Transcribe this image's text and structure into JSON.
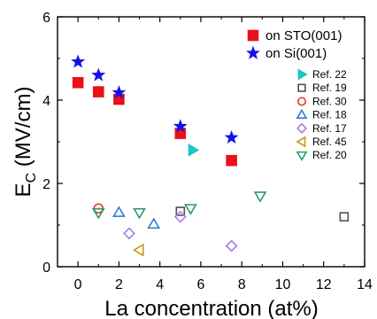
{
  "chart_data": {
    "type": "scatter",
    "title": "",
    "xlabel": "La concentration (at%)",
    "ylabel_main": "E",
    "ylabel_sub": "C",
    "ylabel_rest": " (MV/cm)",
    "xlim": [
      -1,
      14
    ],
    "ylim": [
      0,
      6
    ],
    "xticks": [
      0,
      2,
      4,
      6,
      8,
      10,
      12,
      14
    ],
    "yticks": [
      0,
      2,
      4,
      6
    ],
    "grid": false,
    "legend_position": "top-right",
    "series": [
      {
        "name": "on STO(001)",
        "marker": "square-filled",
        "color": "#e8111a",
        "points": [
          [
            0,
            4.42
          ],
          [
            1,
            4.2
          ],
          [
            2,
            4.02
          ],
          [
            5,
            3.2
          ],
          [
            7.5,
            2.55
          ]
        ]
      },
      {
        "name": "on Si(001)",
        "marker": "star-filled",
        "color": "#1511e6",
        "points": [
          [
            0,
            4.92
          ],
          [
            1,
            4.6
          ],
          [
            2,
            4.18
          ],
          [
            5,
            3.37
          ],
          [
            7.5,
            3.1
          ]
        ]
      },
      {
        "name": "Ref. 22",
        "marker": "triangle-right-filled",
        "color": "#1fc3c3",
        "points": [
          [
            5.6,
            2.8
          ]
        ]
      },
      {
        "name": "Ref. 19",
        "marker": "square-open",
        "color": "#505050",
        "points": [
          [
            5,
            1.33
          ],
          [
            13,
            1.2
          ]
        ]
      },
      {
        "name": "Ref. 30",
        "marker": "circle-open",
        "color": "#e63a32",
        "points": [
          [
            1,
            1.4
          ]
        ]
      },
      {
        "name": "Ref. 18",
        "marker": "triangle-up-open",
        "color": "#2e7bd6",
        "points": [
          [
            2,
            1.3
          ],
          [
            3.7,
            1.02
          ]
        ]
      },
      {
        "name": "Ref. 17",
        "marker": "diamond-open",
        "color": "#a77be6",
        "points": [
          [
            2.5,
            0.8
          ],
          [
            5,
            1.2
          ],
          [
            7.5,
            0.5
          ]
        ]
      },
      {
        "name": "Ref. 45",
        "marker": "triangle-left-open",
        "color": "#c49a17",
        "points": [
          [
            3,
            0.4
          ]
        ]
      },
      {
        "name": "Ref. 20",
        "marker": "triangle-down-open",
        "color": "#2a9a6a",
        "points": [
          [
            1,
            1.3
          ],
          [
            3,
            1.3
          ],
          [
            5.5,
            1.4
          ],
          [
            8.9,
            1.7
          ]
        ]
      }
    ]
  }
}
